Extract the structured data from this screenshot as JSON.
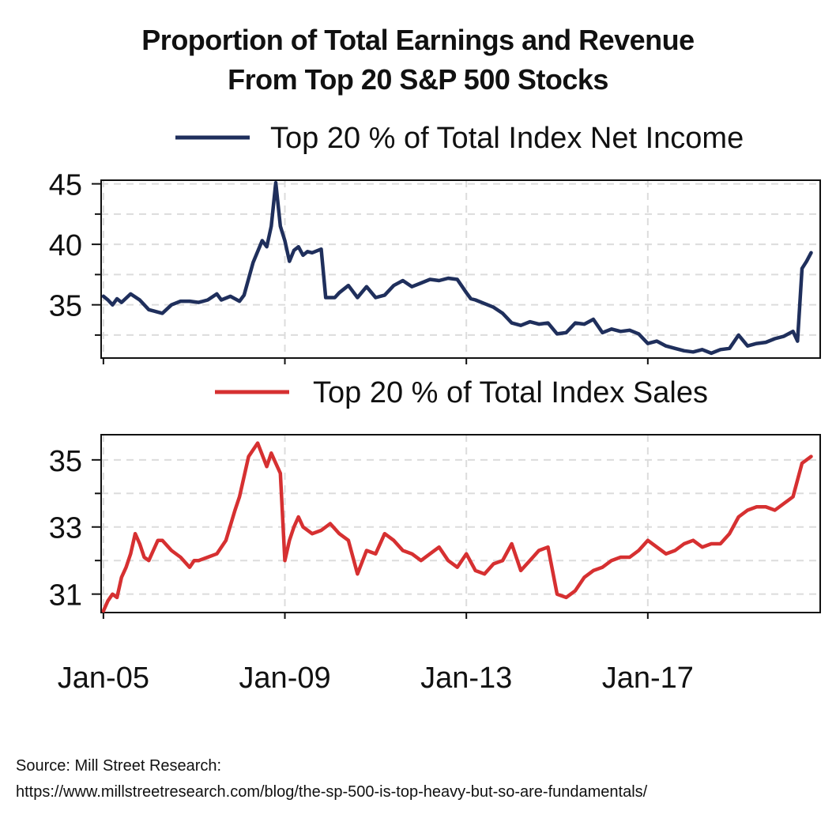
{
  "title_lines": [
    "Proportion of Total Earnings and Revenue",
    "From Top 20 S&P 500 Stocks"
  ],
  "source_lines": [
    "Source: Mill Street Research:",
    "https://www.millstreetresearch.com/blog/the-sp-500-is-top-heavy-but-so-are-fundamentals/"
  ],
  "chart_data": [
    {
      "type": "line",
      "title": "",
      "legend": "Top 20 % of Total Index Net Income",
      "legend_position": "top-center",
      "grid": true,
      "color": "#1f2f5c",
      "ylim": [
        30.6,
        45.3
      ],
      "yticks": [
        35,
        40,
        45
      ],
      "xlim": [
        2004.95,
        2020.8
      ],
      "xticks": [
        {
          "x": 2005.0,
          "label": "Jan-05"
        },
        {
          "x": 2009.0,
          "label": "Jan-09"
        },
        {
          "x": 2013.0,
          "label": "Jan-13"
        },
        {
          "x": 2017.0,
          "label": "Jan-17"
        }
      ],
      "series": [
        {
          "name": "Top 20 % of Total Index Net Income",
          "x": [
            2005.0,
            2005.1,
            2005.2,
            2005.3,
            2005.4,
            2005.6,
            2005.8,
            2006.0,
            2006.1,
            2006.3,
            2006.5,
            2006.7,
            2006.9,
            2007.1,
            2007.3,
            2007.5,
            2007.6,
            2007.8,
            2008.0,
            2008.1,
            2008.3,
            2008.5,
            2008.6,
            2008.7,
            2008.8,
            2008.9,
            2009.0,
            2009.1,
            2009.2,
            2009.3,
            2009.4,
            2009.5,
            2009.6,
            2009.8,
            2009.9,
            2010.1,
            2010.2,
            2010.4,
            2010.6,
            2010.8,
            2011.0,
            2011.2,
            2011.4,
            2011.6,
            2011.8,
            2012.0,
            2012.2,
            2012.4,
            2012.6,
            2012.8,
            2013.0,
            2013.1,
            2013.2,
            2013.4,
            2013.6,
            2013.8,
            2014.0,
            2014.2,
            2014.4,
            2014.6,
            2014.8,
            2015.0,
            2015.2,
            2015.4,
            2015.6,
            2015.8,
            2016.0,
            2016.2,
            2016.4,
            2016.6,
            2016.8,
            2017.0,
            2017.2,
            2017.4,
            2017.6,
            2017.8,
            2018.0,
            2018.2,
            2018.4,
            2018.6,
            2018.8,
            2019.0,
            2019.2,
            2019.4,
            2019.6,
            2019.8,
            2020.0,
            2020.2,
            2020.3,
            2020.4,
            2020.5,
            2020.6
          ],
          "values": [
            35.7,
            35.4,
            35.0,
            35.5,
            35.2,
            35.9,
            35.4,
            34.6,
            34.5,
            34.3,
            35.0,
            35.3,
            35.3,
            35.2,
            35.4,
            35.9,
            35.4,
            35.7,
            35.3,
            35.8,
            38.5,
            40.3,
            39.8,
            41.5,
            45.1,
            41.5,
            40.3,
            38.6,
            39.5,
            39.8,
            39.1,
            39.4,
            39.3,
            39.6,
            35.6,
            35.6,
            36.0,
            36.6,
            35.6,
            36.5,
            35.6,
            35.8,
            36.6,
            37.0,
            36.5,
            36.8,
            37.1,
            37.0,
            37.2,
            37.1,
            36.0,
            35.5,
            35.4,
            35.1,
            34.8,
            34.3,
            33.5,
            33.3,
            33.6,
            33.4,
            33.5,
            32.6,
            32.7,
            33.5,
            33.4,
            33.8,
            32.7,
            33.0,
            32.8,
            32.9,
            32.6,
            31.8,
            32.0,
            31.6,
            31.4,
            31.2,
            31.1,
            31.3,
            31.0,
            31.3,
            31.4,
            32.5,
            31.6,
            31.8,
            31.9,
            32.2,
            32.4,
            32.8,
            32.0,
            38.0,
            38.6,
            39.3
          ]
        }
      ]
    },
    {
      "type": "line",
      "title": "",
      "legend": "Top 20 % of Total Index Sales",
      "legend_position": "top-center",
      "grid": true,
      "color": "#d63031",
      "ylim": [
        30.45,
        35.75
      ],
      "yticks": [
        31,
        33,
        35
      ],
      "xlim": [
        2004.95,
        2020.8
      ],
      "xticks": [
        {
          "x": 2005.0,
          "label": "Jan-05"
        },
        {
          "x": 2009.0,
          "label": "Jan-09"
        },
        {
          "x": 2013.0,
          "label": "Jan-13"
        },
        {
          "x": 2017.0,
          "label": "Jan-17"
        }
      ],
      "series": [
        {
          "name": "Top 20 % of Total Index Sales",
          "x": [
            2005.0,
            2005.1,
            2005.2,
            2005.3,
            2005.4,
            2005.5,
            2005.6,
            2005.7,
            2005.8,
            2005.9,
            2006.0,
            2006.1,
            2006.2,
            2006.3,
            2006.5,
            2006.7,
            2006.9,
            2007.0,
            2007.1,
            2007.3,
            2007.5,
            2007.7,
            2007.9,
            2008.0,
            2008.2,
            2008.4,
            2008.6,
            2008.7,
            2008.8,
            2008.9,
            2009.0,
            2009.1,
            2009.2,
            2009.3,
            2009.4,
            2009.6,
            2009.8,
            2010.0,
            2010.2,
            2010.4,
            2010.6,
            2010.8,
            2011.0,
            2011.2,
            2011.4,
            2011.6,
            2011.8,
            2012.0,
            2012.2,
            2012.4,
            2012.6,
            2012.8,
            2013.0,
            2013.2,
            2013.4,
            2013.6,
            2013.8,
            2014.0,
            2014.2,
            2014.4,
            2014.6,
            2014.8,
            2015.0,
            2015.2,
            2015.4,
            2015.6,
            2015.8,
            2016.0,
            2016.2,
            2016.4,
            2016.6,
            2016.8,
            2017.0,
            2017.2,
            2017.4,
            2017.6,
            2017.8,
            2018.0,
            2018.2,
            2018.4,
            2018.6,
            2018.8,
            2019.0,
            2019.2,
            2019.4,
            2019.6,
            2019.8,
            2020.0,
            2020.2,
            2020.4,
            2020.6
          ],
          "values": [
            30.5,
            30.8,
            31.0,
            30.9,
            31.5,
            31.8,
            32.2,
            32.8,
            32.5,
            32.1,
            32.0,
            32.3,
            32.6,
            32.6,
            32.3,
            32.1,
            31.8,
            32.0,
            32.0,
            32.1,
            32.2,
            32.6,
            33.5,
            33.9,
            35.1,
            35.5,
            34.8,
            35.2,
            34.9,
            34.6,
            32.0,
            32.6,
            33.0,
            33.3,
            33.0,
            32.8,
            32.9,
            33.1,
            32.8,
            32.6,
            31.6,
            32.3,
            32.2,
            32.8,
            32.6,
            32.3,
            32.2,
            32.0,
            32.2,
            32.4,
            32.0,
            31.8,
            32.2,
            31.7,
            31.6,
            31.9,
            32.0,
            32.5,
            31.7,
            32.0,
            32.3,
            32.4,
            31.0,
            30.9,
            31.1,
            31.5,
            31.7,
            31.8,
            32.0,
            32.1,
            32.1,
            32.3,
            32.6,
            32.4,
            32.2,
            32.3,
            32.5,
            32.6,
            32.4,
            32.5,
            32.5,
            32.8,
            33.3,
            33.5,
            33.6,
            33.6,
            33.5,
            33.7,
            33.9,
            34.9,
            35.1
          ]
        }
      ]
    }
  ]
}
